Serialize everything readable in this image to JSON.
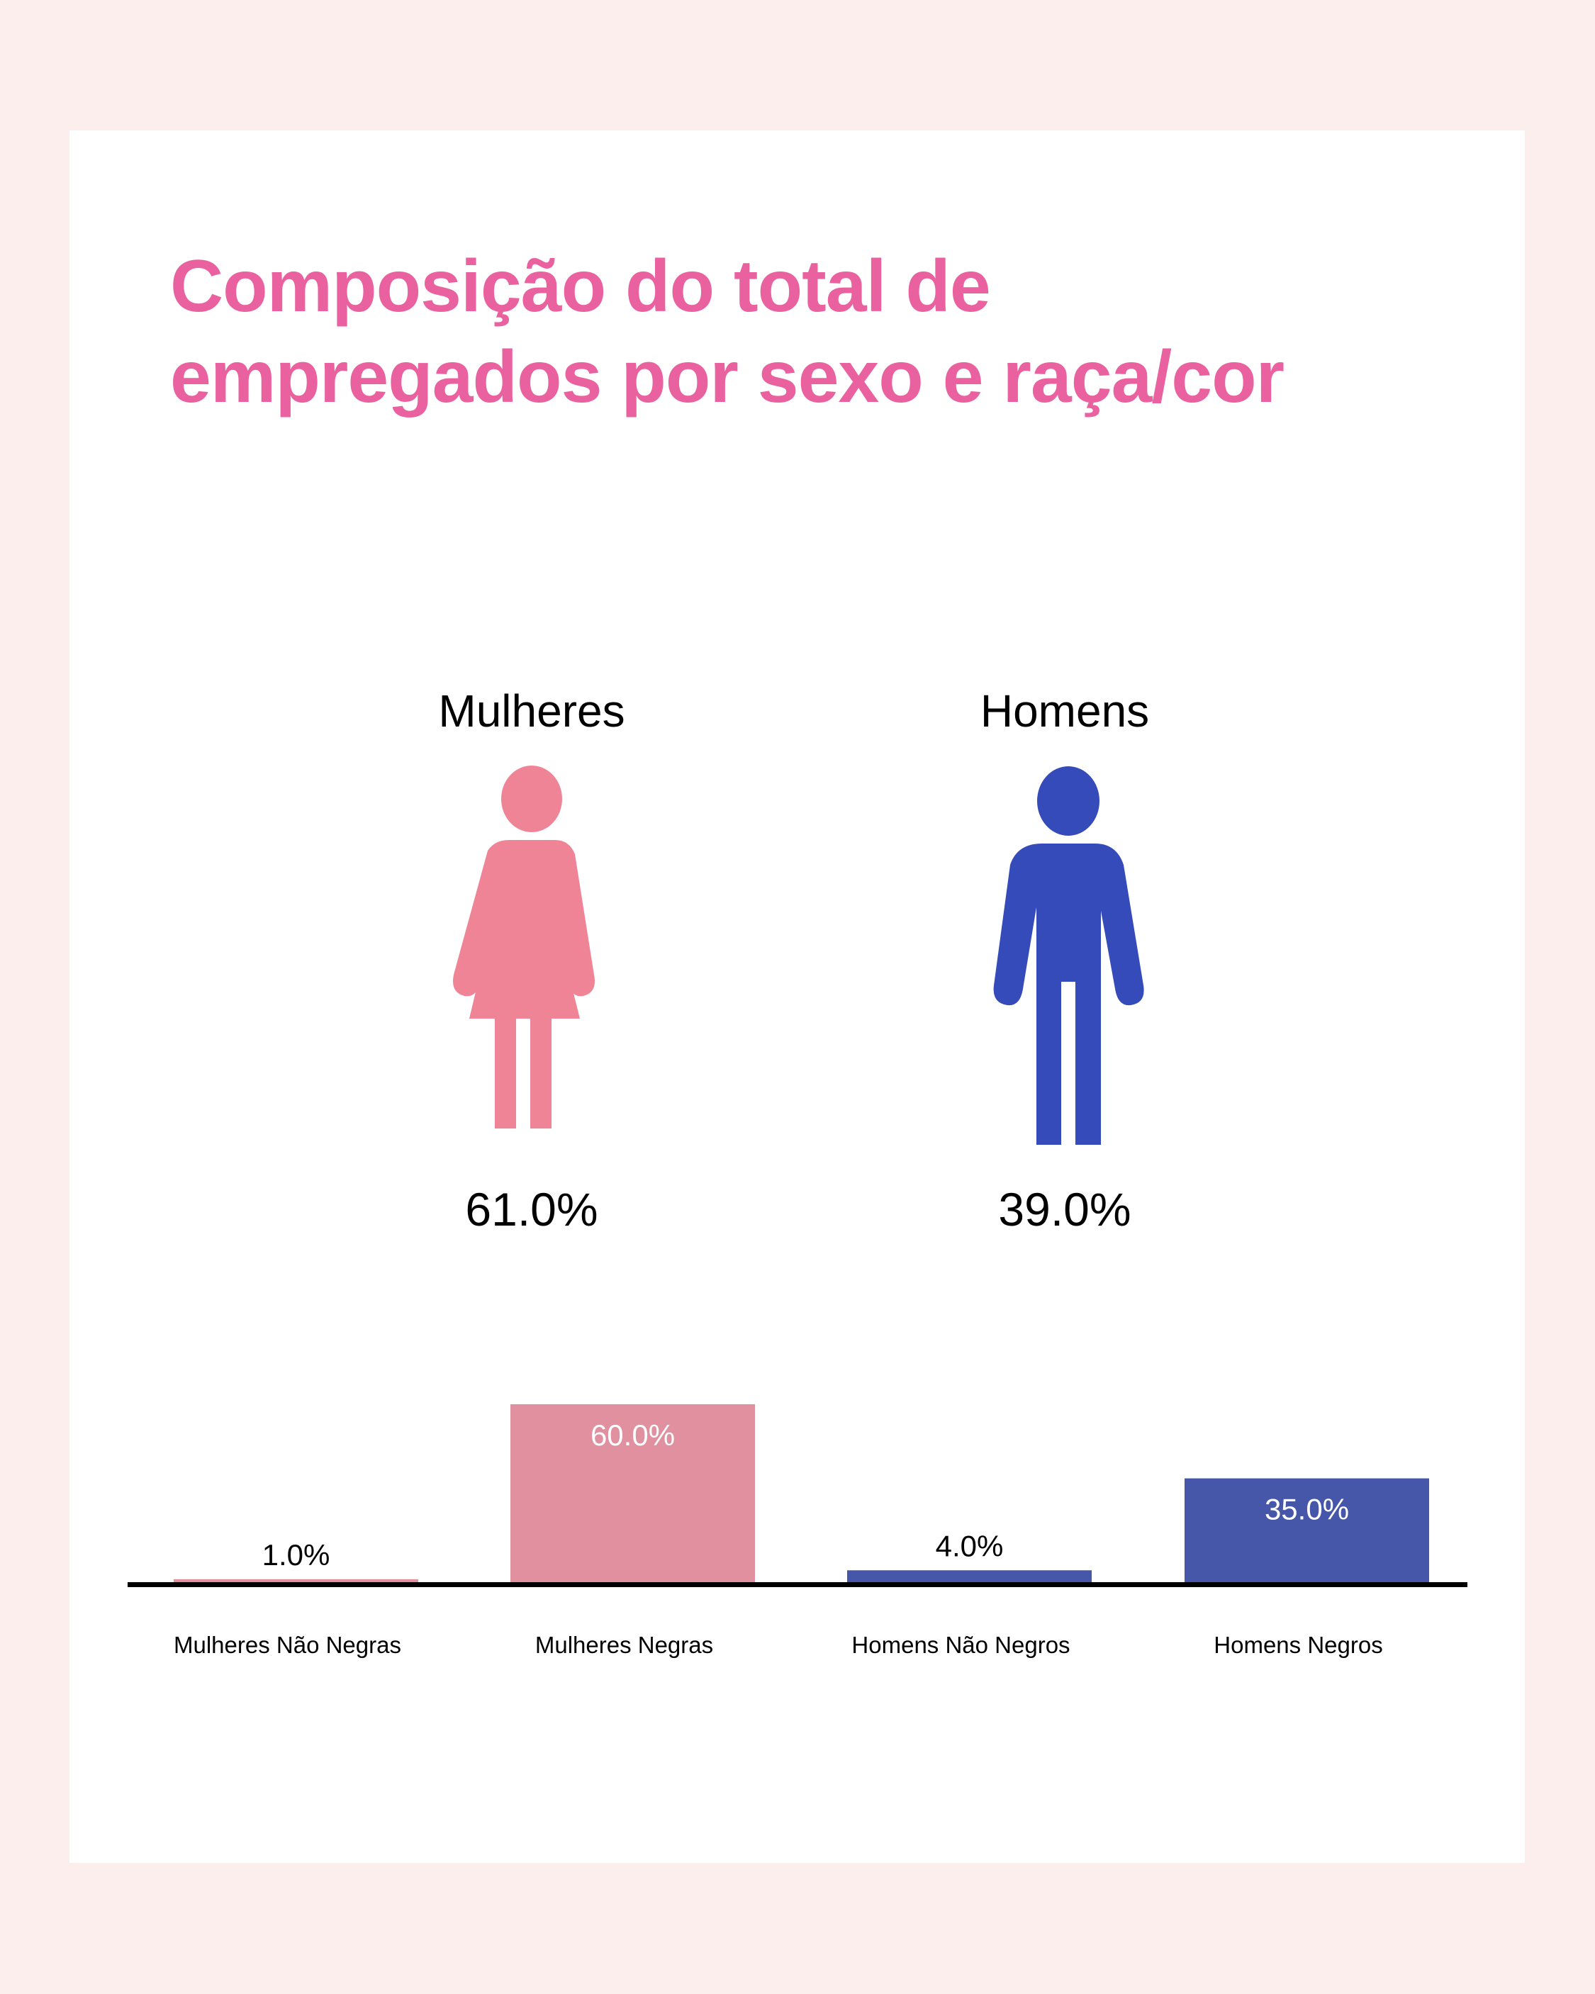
{
  "title": "Composição do total de empregados por sexo e raça/cor",
  "groups": [
    {
      "label": "Mulheres",
      "percent": "61.0%",
      "value": 61.0,
      "icon": "woman-icon",
      "color": "#ef8496"
    },
    {
      "label": "Homens",
      "percent": "39.0%",
      "value": 39.0,
      "icon": "man-icon",
      "color": "#344bb9"
    }
  ],
  "colors": {
    "background": "#fdeeee",
    "title": "#e9629f",
    "bar_women": "#e0909f",
    "bar_men": "#4656a8",
    "axis": "#000000"
  },
  "chart_data": {
    "type": "bar",
    "title": "Composição do total de empregados por sexo e raça/cor",
    "xlabel": "",
    "ylabel": "",
    "categories": [
      "Mulheres Não Negras",
      "Mulheres Negras",
      "Homens Não Negros",
      "Homens Negros"
    ],
    "values": [
      1.0,
      60.0,
      4.0,
      35.0
    ],
    "data_labels": [
      "1.0%",
      "60.0%",
      "4.0%",
      "35.0%"
    ],
    "bar_colors": [
      "#e0909f",
      "#e0909f",
      "#4656a8",
      "#4656a8"
    ],
    "ylim": [
      0,
      60
    ],
    "grid": false,
    "legend": "none"
  }
}
